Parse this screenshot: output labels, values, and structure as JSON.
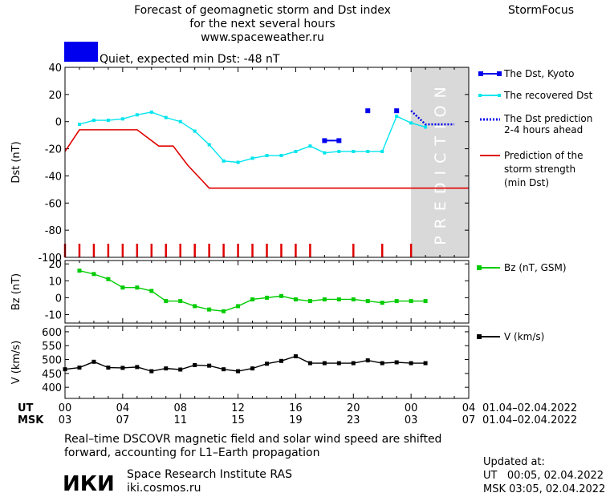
{
  "header": {
    "title_line1": "Forecast of geomagnetic storm and Dst index",
    "title_line2": "for the next several hours",
    "url": "www.spaceweather.ru",
    "brand": "StormFocus",
    "status_text": "Quiet, expected min Dst: -48 nT",
    "status_color": "#0000ee"
  },
  "colors": {
    "dst_kyoto": "#0000ee",
    "dst_recovered": "#00e5ee",
    "dst_prediction": "#0000ee",
    "storm_prediction": "#e00000",
    "bz": "#00cc00",
    "v": "#000000",
    "prediction_zone": "#d9d9d9",
    "prediction_text": "#ffffff"
  },
  "prediction_label": "PREDICTION",
  "legend": {
    "kyoto": "The Dst, Kyoto",
    "recovered": "The recovered Dst",
    "prediction_line1": "The Dst prediction",
    "prediction_line2": "2-4 hours ahead",
    "storm_line1": "Prediction of the",
    "storm_line2": "storm strength",
    "storm_line3": "(min Dst)",
    "bz": "Bz (nT, GSM)",
    "v": "V (km/s)"
  },
  "axes": {
    "dst_ylabel": "Dst (nT)",
    "bz_ylabel": "Bz (nT)",
    "v_ylabel": "V (km/s)",
    "ut_label": "UT",
    "msk_label": "MSK",
    "ut_ticks": [
      "00",
      "04",
      "08",
      "12",
      "16",
      "20",
      "00",
      "04"
    ],
    "msk_ticks": [
      "03",
      "07",
      "11",
      "15",
      "19",
      "23",
      "03",
      "07"
    ],
    "ut_range": "01.04–02.04.2022",
    "msk_range": "01.04–02.04.2022"
  },
  "footer": {
    "note_line1": "Real–time DSCOVR magnetic field and solar wind speed are shifted",
    "note_line2": "forward, accounting for L1–Earth propagation",
    "logo_text": "ИКИ",
    "institute": "Space Research Institute RAS",
    "institute_url": "iki.cosmos.ru",
    "updated_label": "Updated at:",
    "updated_ut": "UT   00:05, 02.04.2022",
    "updated_msk": "MSK 03:05, 02.04.2022"
  },
  "chart_data": [
    {
      "type": "line",
      "panel": "dst",
      "ylabel": "Dst (nT)",
      "xlim_hours": [
        0,
        28
      ],
      "ylim": [
        -100,
        40
      ],
      "yticks": [
        40,
        20,
        0,
        -20,
        -40,
        -60,
        -80,
        -100
      ],
      "prediction_zone_hours": [
        24,
        28
      ],
      "series": [
        {
          "name": "The Dst, Kyoto",
          "x": [
            18,
            19,
            21,
            23
          ],
          "y": [
            -14,
            -14,
            8,
            8
          ]
        },
        {
          "name": "The recovered Dst",
          "x": [
            1,
            2,
            3,
            4,
            5,
            6,
            7,
            8,
            9,
            10,
            11,
            12,
            13,
            14,
            15,
            16,
            17,
            18,
            19,
            20,
            21,
            22,
            23,
            24,
            25
          ],
          "y": [
            -2,
            1,
            1,
            2,
            5,
            7,
            3,
            0,
            -7,
            -17,
            -29,
            -30,
            -27,
            -25,
            -25,
            -22,
            -18,
            -23,
            -22,
            -22,
            -22,
            -22,
            4,
            -1,
            -4
          ]
        },
        {
          "name": "The Dst prediction 2-4 hours ahead",
          "x": [
            24,
            25,
            26,
            27
          ],
          "y": [
            8,
            -2,
            -2,
            -2
          ]
        },
        {
          "name": "Prediction of the storm strength (min Dst)",
          "x": [
            0,
            1,
            5,
            6.5,
            7.5,
            8.5,
            10,
            28
          ],
          "y": [
            -22,
            -6,
            -6,
            -18,
            -18,
            -32,
            -49,
            -49
          ]
        }
      ],
      "red_tick_hours": [
        0,
        1,
        2,
        3,
        4,
        5,
        6,
        7,
        8,
        9,
        10,
        11,
        12,
        13,
        14,
        15,
        16,
        17,
        20,
        22,
        24
      ]
    },
    {
      "type": "line",
      "panel": "bz",
      "ylabel": "Bz (nT)",
      "ylim": [
        -15,
        22
      ],
      "yticks": [
        20,
        10,
        0,
        -10
      ],
      "series": [
        {
          "name": "Bz (nT, GSM)",
          "x": [
            1,
            2,
            3,
            4,
            5,
            6,
            7,
            8,
            9,
            10,
            11,
            12,
            13,
            14,
            15,
            16,
            17,
            18,
            19,
            20,
            21,
            22,
            23,
            24,
            25
          ],
          "y": [
            16,
            14,
            11,
            6,
            6,
            4,
            -2,
            -2,
            -5,
            -7,
            -8,
            -5,
            -1,
            0,
            1,
            -1,
            -2,
            -1,
            -1,
            -1,
            -2,
            -3,
            -2,
            -2,
            -2
          ]
        }
      ]
    },
    {
      "type": "line",
      "panel": "v",
      "ylabel": "V (km/s)",
      "ylim": [
        360,
        620
      ],
      "yticks": [
        600,
        550,
        500,
        450,
        400
      ],
      "series": [
        {
          "name": "V (km/s)",
          "x": [
            0,
            1,
            2,
            3,
            4,
            5,
            6,
            7,
            8,
            9,
            10,
            11,
            12,
            13,
            14,
            15,
            16,
            17,
            18,
            19,
            20,
            21,
            22,
            23,
            24,
            25
          ],
          "y": [
            465,
            471,
            492,
            471,
            470,
            473,
            458,
            468,
            464,
            480,
            478,
            465,
            458,
            468,
            485,
            495,
            512,
            487,
            487,
            487,
            487,
            497,
            487,
            490,
            487,
            487
          ]
        }
      ]
    }
  ]
}
